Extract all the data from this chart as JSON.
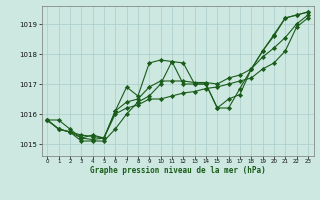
{
  "background_color": "#cce8e0",
  "plot_bg_color": "#cce8e0",
  "grid_color": "#aacccc",
  "line_color": "#1a5c1a",
  "marker_color": "#1a5c1a",
  "xlabel": "Graphe pression niveau de la mer (hPa)",
  "xlim": [
    -0.5,
    23.5
  ],
  "ylim": [
    1014.6,
    1019.6
  ],
  "yticks": [
    1015,
    1016,
    1017,
    1018,
    1019
  ],
  "xticks": [
    0,
    1,
    2,
    3,
    4,
    5,
    6,
    7,
    8,
    9,
    10,
    11,
    12,
    13,
    14,
    15,
    16,
    17,
    18,
    19,
    20,
    21,
    22,
    23
  ],
  "series": [
    [
      1015.8,
      1015.8,
      1015.5,
      1015.2,
      1015.3,
      1015.2,
      1016.1,
      1016.9,
      1016.6,
      1017.7,
      1017.8,
      1017.75,
      1017.7,
      1017.0,
      1017.0,
      1016.2,
      1016.5,
      1016.65,
      1017.5,
      1018.1,
      1018.6,
      1019.2,
      1019.3,
      1019.4
    ],
    [
      1015.8,
      1015.5,
      1015.4,
      1015.1,
      1015.1,
      1015.1,
      1015.5,
      1016.0,
      1016.4,
      1016.6,
      1017.0,
      1017.75,
      1017.0,
      1017.0,
      1017.0,
      1016.2,
      1016.2,
      1016.85,
      1017.5,
      1018.1,
      1018.65,
      1019.2,
      1019.3,
      1019.4
    ],
    [
      1015.8,
      1015.5,
      1015.4,
      1015.2,
      1015.15,
      1015.2,
      1016.1,
      1016.4,
      1016.5,
      1016.9,
      1017.1,
      1017.1,
      1017.1,
      1017.05,
      1017.05,
      1017.0,
      1017.2,
      1017.3,
      1017.5,
      1017.9,
      1018.2,
      1018.55,
      1019.0,
      1019.3
    ],
    [
      1015.8,
      1015.5,
      1015.4,
      1015.3,
      1015.25,
      1015.2,
      1016.0,
      1016.2,
      1016.3,
      1016.5,
      1016.5,
      1016.6,
      1016.7,
      1016.75,
      1016.85,
      1016.9,
      1017.0,
      1017.1,
      1017.2,
      1017.5,
      1017.7,
      1018.1,
      1018.9,
      1019.2
    ]
  ]
}
